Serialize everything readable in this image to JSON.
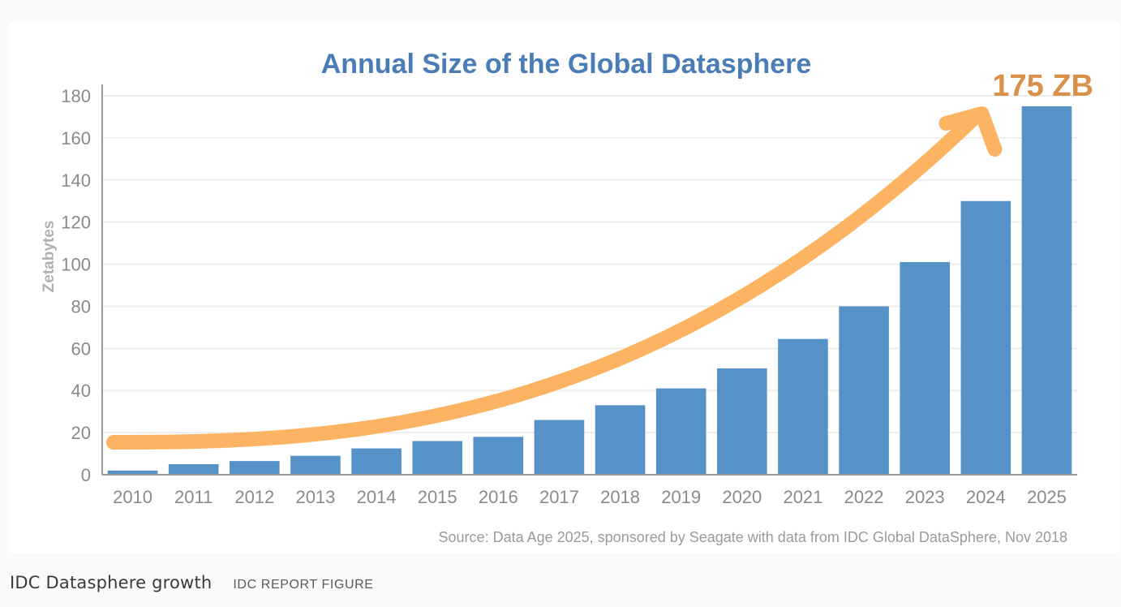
{
  "caption": {
    "title": "IDC Datasphere growth",
    "tag": "IDC REPORT FIGURE"
  },
  "chart_data": {
    "type": "bar",
    "title": "Annual Size of the Global Datasphere",
    "ylabel": "Zetabytes",
    "xlabel": "",
    "categories": [
      "2010",
      "2011",
      "2012",
      "2013",
      "2014",
      "2015",
      "2016",
      "2017",
      "2018",
      "2019",
      "2020",
      "2021",
      "2022",
      "2023",
      "2024",
      "2025"
    ],
    "values": [
      2,
      5,
      6.5,
      9,
      12.5,
      16,
      18,
      26,
      33,
      41,
      50.5,
      64.5,
      80,
      101,
      130,
      175
    ],
    "ylim": [
      0,
      180
    ],
    "yticks": [
      0,
      20,
      40,
      60,
      80,
      100,
      120,
      140,
      160,
      180
    ],
    "grid": true,
    "annotation": "175 ZB",
    "source": "Source: Data Age 2025, sponsored by Seagate with data from IDC Global DataSphere, Nov 2018",
    "colors": {
      "bar": "#5691c8",
      "title": "#4a7db5",
      "arrow": "#fdb462",
      "annotation": "#d9904a",
      "axis": "#999999",
      "tick_text": "#8a8a8a",
      "grid": "#eeeeee"
    }
  }
}
